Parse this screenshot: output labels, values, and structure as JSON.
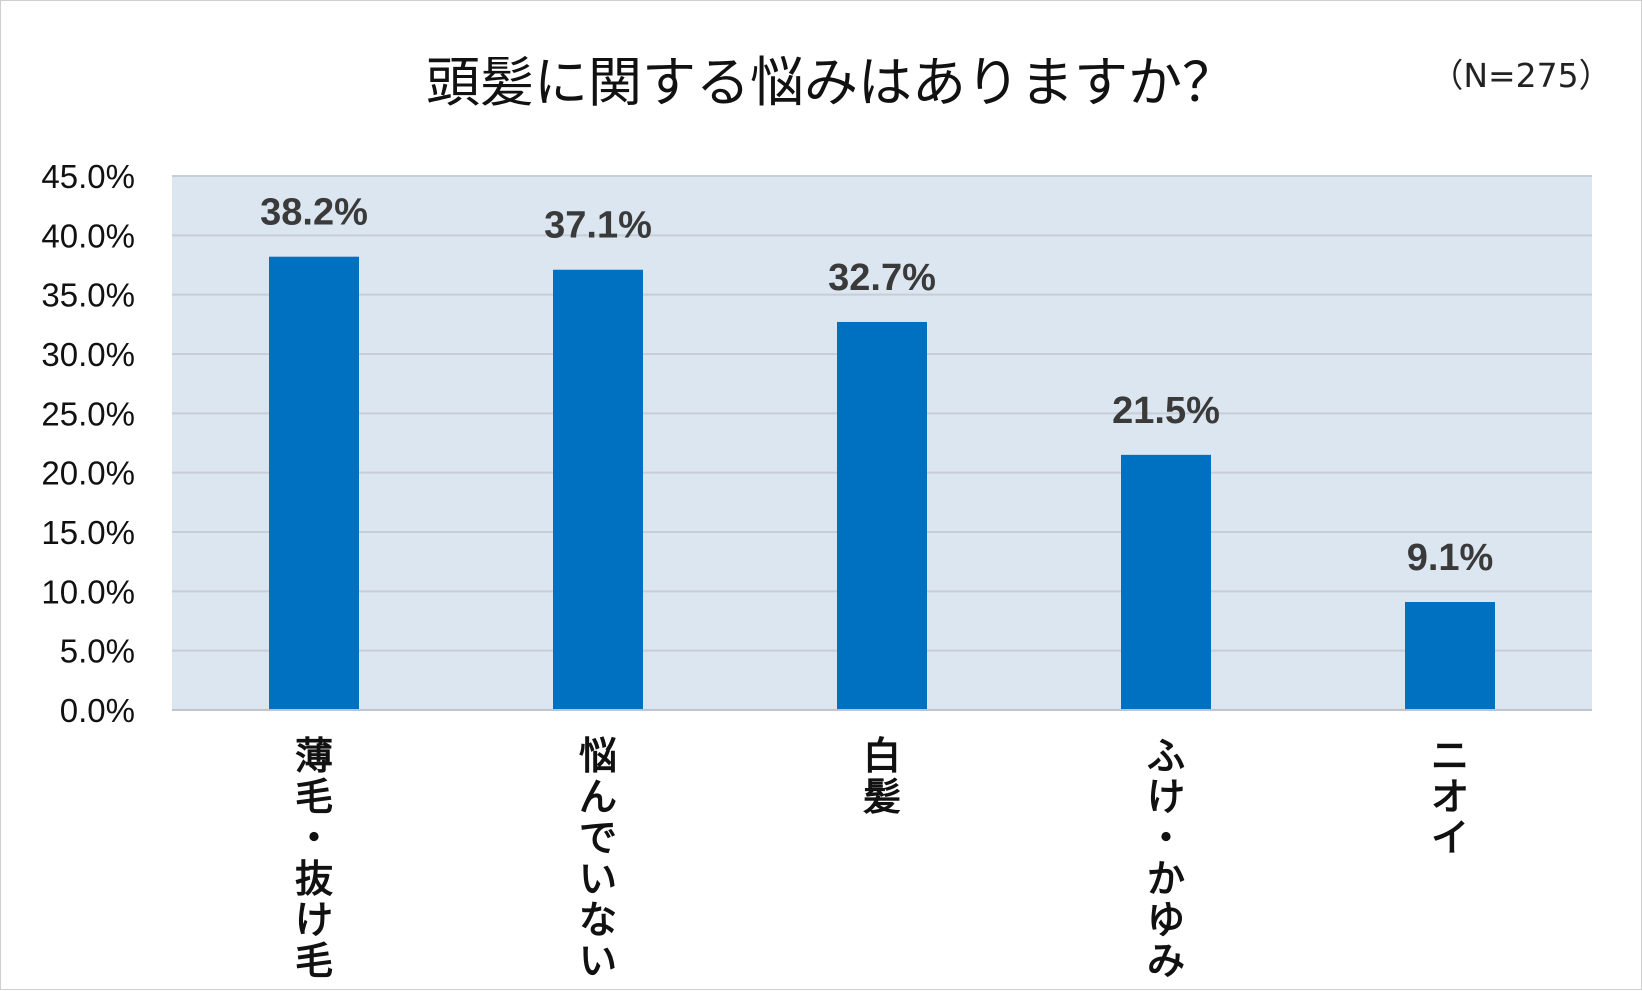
{
  "chart_data": {
    "type": "bar",
    "title": "頭髪に関する悩みはありますか？",
    "note": "（N=275）",
    "categories": [
      "薄毛・抜け毛",
      "悩んでいない",
      "白髪",
      "ふけ・かゆみ",
      "ニオイ"
    ],
    "series": [
      {
        "values": [
          38.2,
          37.1,
          32.7,
          21.5,
          9.1
        ]
      }
    ],
    "data_labels": [
      "38.2%",
      "37.1%",
      "32.7%",
      "21.5%",
      "9.1%"
    ],
    "ylim": [
      0,
      45
    ],
    "y_ticks": [
      "0.0%",
      "5.0%",
      "10.0%",
      "15.0%",
      "20.0%",
      "25.0%",
      "30.0%",
      "35.0%",
      "40.0%",
      "45.0%"
    ],
    "xlabel": "",
    "ylabel": "",
    "grid": true,
    "colors": {
      "bar": "#0070C0",
      "plot_background": "#DCE6F1",
      "gridline": "#C8CDD6"
    }
  }
}
